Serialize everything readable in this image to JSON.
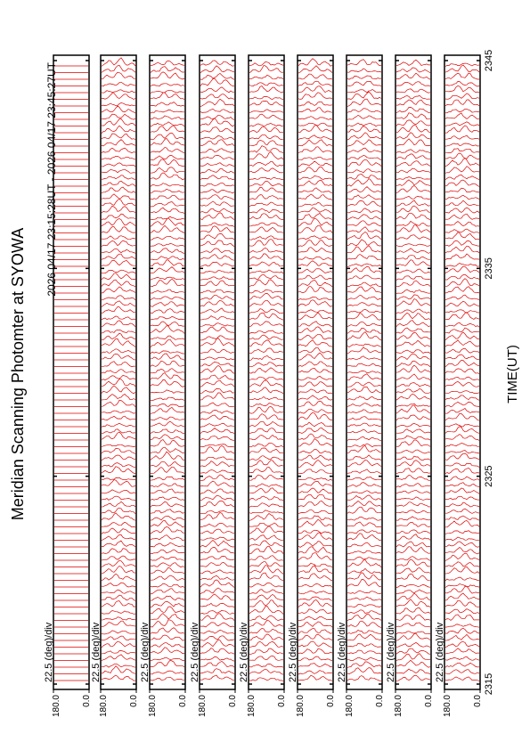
{
  "chart_data": {
    "type": "msp",
    "title": "Meridian Scanning Photomter at SYOWA",
    "subtitle": "2026 04/17 23:15:28UT - 2026 04/17 23:45:27UT",
    "xlabel": "TIME(UT)",
    "xlim": [
      2315,
      2345
    ],
    "xticks": [
      2315,
      2325,
      2335,
      2345
    ],
    "color": "#e00000",
    "panels": [
      {
        "label": "22.5 (deg)/div",
        "ylim": [
          0,
          180
        ],
        "yticks": [
          {
            "value": 0,
            "label": "0.0"
          },
          {
            "value": 180,
            "label": "180.0"
          }
        ]
      },
      {
        "label": "22.5 (deg)/div",
        "ylim": [
          0,
          180
        ],
        "yticks": [
          {
            "value": 0,
            "label": "0.0"
          },
          {
            "value": 180,
            "label": "180.0"
          }
        ]
      },
      {
        "label": "22.5 (deg)/div",
        "ylim": [
          0,
          180
        ],
        "yticks": [
          {
            "value": 0,
            "label": "0.0"
          },
          {
            "value": 180,
            "label": "180.0"
          }
        ]
      },
      {
        "label": "22.5 (deg)/div",
        "ylim": [
          0,
          180
        ],
        "yticks": [
          {
            "value": 0,
            "label": "0.0"
          },
          {
            "value": 180,
            "label": "180.0"
          }
        ]
      },
      {
        "label": "22.5 (deg)/div",
        "ylim": [
          0,
          180
        ],
        "yticks": [
          {
            "value": 0,
            "label": "0.0"
          },
          {
            "value": 180,
            "label": "180.0"
          }
        ]
      },
      {
        "label": "22.5 (deg)/div",
        "ylim": [
          0,
          180
        ],
        "yticks": [
          {
            "value": 0,
            "label": "0.0"
          },
          {
            "value": 180,
            "label": "180.0"
          }
        ]
      },
      {
        "label": "22.5 (deg)/div",
        "ylim": [
          0,
          180
        ],
        "yticks": [
          {
            "value": 0,
            "label": "0.0"
          },
          {
            "value": 180,
            "label": "180.0"
          }
        ]
      },
      {
        "label": "22.5 (deg)/div",
        "ylim": [
          0,
          180
        ],
        "yticks": [
          {
            "value": 0,
            "label": "0.0"
          },
          {
            "value": 180,
            "label": "180.0"
          }
        ]
      },
      {
        "label": "22.5 (deg)/div",
        "ylim": [
          0,
          180
        ],
        "yticks": [
          {
            "value": 0,
            "label": "0.0"
          },
          {
            "value": 180,
            "label": "180.0"
          }
        ]
      }
    ]
  }
}
